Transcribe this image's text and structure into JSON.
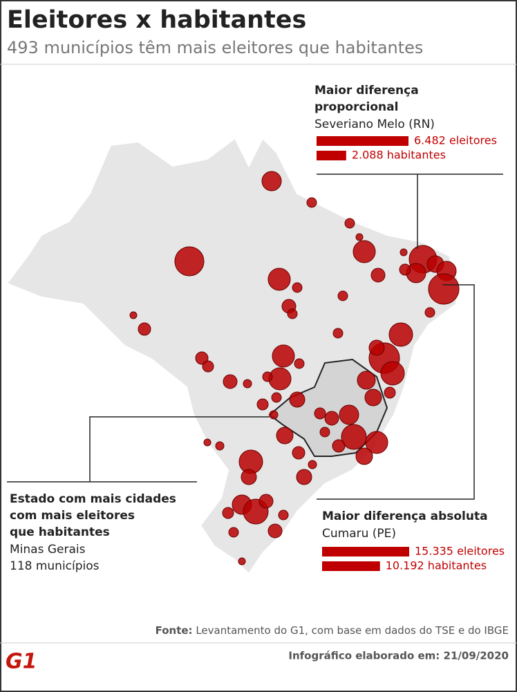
{
  "header": {
    "title": "Eleitores x habitantes",
    "subtitle": "493 municípios têm mais eleitores que habitantes"
  },
  "callouts": {
    "proportional": {
      "title_lines": [
        "Maior diferença",
        "proporcional"
      ],
      "place": "Severiano Melo (RN)",
      "bars": [
        {
          "value": 6482,
          "label": "6.482 eleitores"
        },
        {
          "value": 2088,
          "label": "2.088 habitantes"
        }
      ]
    },
    "state": {
      "title_lines": [
        "Estado com mais cidades",
        "com mais eleitores",
        "que habitantes"
      ],
      "place": "Minas Gerais",
      "detail": "118 municípios"
    },
    "absolute": {
      "title": "Maior diferença absoluta",
      "place": "Cumaru (PE)",
      "bars": [
        {
          "value": 15335,
          "label": "15.335 eleitores"
        },
        {
          "value": 10192,
          "label": "10.192 habitantes"
        }
      ]
    }
  },
  "footer": {
    "source_label": "Fonte:",
    "source": "Levantamento do G1, com base em dados do TSE e do IBGE",
    "date": "Infográfico elaborado em: 21/09/2020",
    "logo": "G1"
  }
}
